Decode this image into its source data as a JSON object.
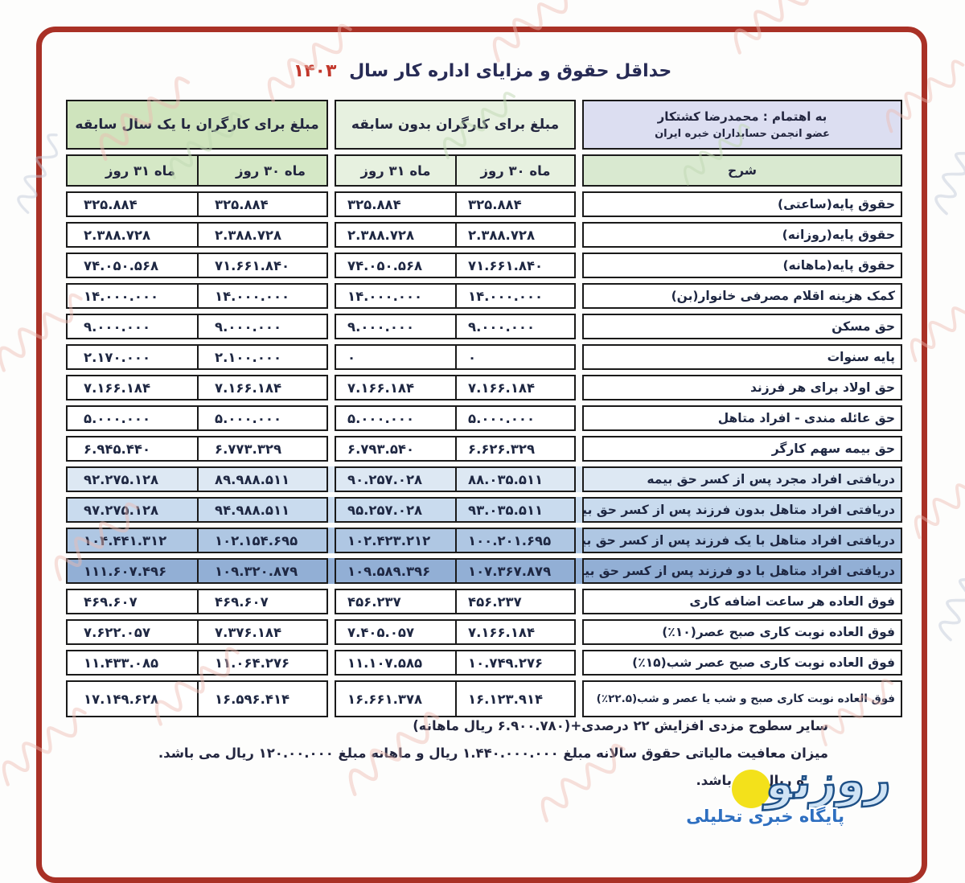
{
  "title": {
    "text": "حداقل حقوق و مزایای اداره کار سال",
    "year": "۱۴۰۳"
  },
  "table": {
    "attribution": {
      "line1": "به اهتمام : محمدرضا کشتکار",
      "line2": "عضو انجمن حسابداران خبره ایران"
    },
    "columns": {
      "description": "شرح",
      "group_no_experience": "مبلغ برای کارگران بدون سابقه",
      "group_one_year": "مبلغ برای کارگران با یک سال سابقه",
      "month_30": "ماه ۳۰ روز",
      "month_31": "ماه ۳۱ روز"
    },
    "value_order": [
      "no_experience_month30",
      "no_experience_month31",
      "one_year_month30",
      "one_year_month31"
    ],
    "rows": [
      {
        "label": "حقوق پایه(ساعتی)",
        "values": [
          "۳۲۵.۸۸۴",
          "۳۲۵.۸۸۴",
          "۳۲۵.۸۸۴",
          "۳۲۵.۸۸۴"
        ],
        "band": ""
      },
      {
        "label": "حقوق پایه(روزانه)",
        "values": [
          "۲.۳۸۸.۷۲۸",
          "۲.۳۸۸.۷۲۸",
          "۲.۳۸۸.۷۲۸",
          "۲.۳۸۸.۷۲۸"
        ],
        "band": ""
      },
      {
        "label": "حقوق پایه(ماهانه)",
        "values": [
          "۷۱.۶۶۱.۸۴۰",
          "۷۴.۰۵۰.۵۶۸",
          "۷۱.۶۶۱.۸۴۰",
          "۷۴.۰۵۰.۵۶۸"
        ],
        "band": ""
      },
      {
        "label": "کمک هزینه اقلام مصرفی خانوار(بن)",
        "values": [
          "۱۴.۰۰۰.۰۰۰",
          "۱۴.۰۰۰.۰۰۰",
          "۱۴.۰۰۰.۰۰۰",
          "۱۴.۰۰۰.۰۰۰"
        ],
        "band": ""
      },
      {
        "label": "حق مسکن",
        "values": [
          "۹.۰۰۰.۰۰۰",
          "۹.۰۰۰.۰۰۰",
          "۹.۰۰۰.۰۰۰",
          "۹.۰۰۰.۰۰۰"
        ],
        "band": ""
      },
      {
        "label": "پایه سنوات",
        "values": [
          "۰",
          "۰",
          "۲.۱۰۰.۰۰۰",
          "۲.۱۷۰.۰۰۰"
        ],
        "band": ""
      },
      {
        "label": "حق اولاد برای هر فرزند",
        "values": [
          "۷.۱۶۶.۱۸۴",
          "۷.۱۶۶.۱۸۴",
          "۷.۱۶۶.۱۸۴",
          "۷.۱۶۶.۱۸۴"
        ],
        "band": ""
      },
      {
        "label": "حق عائله مندی - افراد متاهل",
        "values": [
          "۵.۰۰۰.۰۰۰",
          "۵.۰۰۰.۰۰۰",
          "۵.۰۰۰.۰۰۰",
          "۵.۰۰۰.۰۰۰"
        ],
        "band": ""
      },
      {
        "label": "حق بیمه سهم کارگر",
        "values": [
          "۶.۶۲۶.۳۲۹",
          "۶.۷۹۳.۵۴۰",
          "۶.۷۷۳.۳۲۹",
          "۶.۹۴۵.۴۴۰"
        ],
        "band": ""
      },
      {
        "label": "دریافتی افراد مجرد پس از کسر حق بیمه",
        "values": [
          "۸۸.۰۳۵.۵۱۱",
          "۹۰.۲۵۷.۰۲۸",
          "۸۹.۹۸۸.۵۱۱",
          "۹۲.۲۷۵.۱۲۸"
        ],
        "band": "b1"
      },
      {
        "label": "دریافتی افراد متاهل بدون فرزند پس از کسر حق بیمه",
        "values": [
          "۹۳.۰۳۵.۵۱۱",
          "۹۵.۲۵۷.۰۲۸",
          "۹۴.۹۸۸.۵۱۱",
          "۹۷.۲۷۵.۱۲۸"
        ],
        "band": "b2"
      },
      {
        "label": "دریافتی افراد متاهل با یک فرزند پس از کسر حق بیمه",
        "values": [
          "۱۰۰.۲۰۱.۶۹۵",
          "۱۰۲.۴۲۳.۲۱۲",
          "۱۰۲.۱۵۴.۶۹۵",
          "۱۰۴.۴۴۱.۳۱۲"
        ],
        "band": "b3"
      },
      {
        "label": "دریافتی افراد متاهل با دو فرزند پس از کسر حق بیمه",
        "values": [
          "۱۰۷.۳۶۷.۸۷۹",
          "۱۰۹.۵۸۹.۳۹۶",
          "۱۰۹.۳۲۰.۸۷۹",
          "۱۱۱.۶۰۷.۴۹۶"
        ],
        "band": "b4"
      },
      {
        "label": "فوق العاده هر ساعت اضافه کاری",
        "values": [
          "۴۵۶.۲۳۷",
          "۴۵۶.۲۳۷",
          "۴۶۹.۶۰۷",
          "۴۶۹.۶۰۷"
        ],
        "band": ""
      },
      {
        "label": "فوق العاده نوبت کاری صبح عصر(۱۰٪)",
        "values": [
          "۷.۱۶۶.۱۸۴",
          "۷.۴۰۵.۰۵۷",
          "۷.۳۷۶.۱۸۴",
          "۷.۶۲۲.۰۵۷"
        ],
        "band": ""
      },
      {
        "label": "فوق العاده نوبت کاری صبح عصر شب(۱۵٪)",
        "values": [
          "۱۰.۷۴۹.۲۷۶",
          "۱۱.۱۰۷.۵۸۵",
          "۱۱.۰۶۴.۲۷۶",
          "۱۱.۴۳۳.۰۸۵"
        ],
        "band": ""
      },
      {
        "label": "فوق العاده نوبت کاری صبح و شب یا عصر و شب(۲۲.۵٪)",
        "values": [
          "۱۶.۱۲۳.۹۱۴",
          "۱۶.۶۶۱.۳۷۸",
          "۱۶.۵۹۶.۴۱۴",
          "۱۷.۱۴۹.۶۲۸"
        ],
        "band": "",
        "tall": true
      }
    ]
  },
  "notes": [
    "سایر سطوح مزدی افزایش ۲۲ درصدی+(۶.۹۰۰.۷۸۰ ریال ماهانه)",
    "میزان معافیت مالیاتی حقوق سالانه مبلغ ۱.۴۴۰.۰۰۰.۰۰۰ ریال و ماهانه مبلغ ۱۲۰.۰۰.۰۰۰ ریال می باشد.",
    "ه ریال می باشد."
  ],
  "logo": {
    "brand": "روزنو",
    "tagline": "پایگاه خبری تحلیلی"
  },
  "colors": {
    "frame_red": "#a93126",
    "year_red": "#c2372b",
    "attribution_bg": "#dcdef1",
    "desc_header_bg": "#d9e9d0",
    "group_no_exp_bg": "#e7f1e0",
    "group_one_year_bg": "#cfe4bd",
    "blue_band_1": "#dde8f3",
    "blue_band_2": "#c9dbee",
    "blue_band_3": "#afc7e3",
    "blue_band_4": "#92afd5",
    "logo_yellow": "#f3e11b",
    "logo_blue": "#1d4f86",
    "tagline_blue": "#2e6fc0"
  }
}
